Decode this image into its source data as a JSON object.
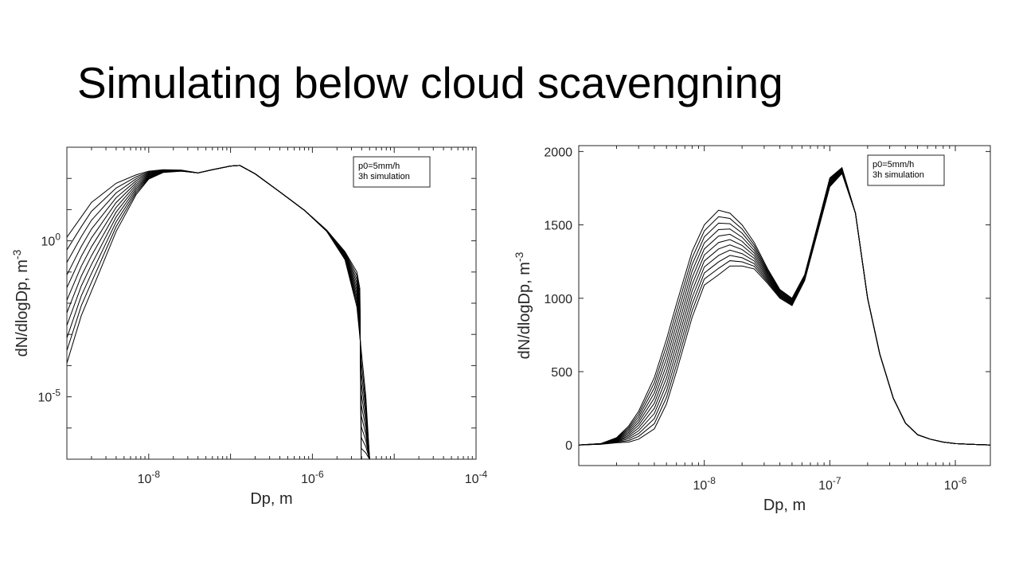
{
  "slide": {
    "title": "Simulating below cloud scavengning"
  },
  "chart_data": [
    {
      "type": "line",
      "xscale": "log",
      "yscale": "log",
      "xlabel": "Dp, m",
      "ylabel": "dN/dlogDp, m",
      "ylabel_sup": "-3",
      "xlim": [
        1e-09,
        0.0001
      ],
      "ylim": [
        1e-07,
        1000.0
      ],
      "xticks": [
        {
          "v": 1e-08,
          "base": "10",
          "exp": "-8"
        },
        {
          "v": 1e-06,
          "base": "10",
          "exp": "-6"
        },
        {
          "v": 0.0001,
          "base": "10",
          "exp": "-4"
        }
      ],
      "yticks": [
        {
          "v": 1.0,
          "base": "10",
          "exp": "0"
        },
        {
          "v": 1e-05,
          "base": "10",
          "exp": "-5"
        }
      ],
      "legend": {
        "lines": [
          "p0=5mm/h",
          "3h simulation"
        ],
        "placement": "top-right"
      },
      "grid": false,
      "n_series": 11,
      "upper_curve": {
        "x": [
          1e-09,
          2e-09,
          4e-09,
          7e-09,
          1e-08,
          1.5e-08,
          2.5e-08,
          4e-08,
          6e-08,
          1e-07,
          1.3e-07,
          2e-07,
          4e-07,
          8e-07,
          1.5e-06,
          2.5e-06,
          3.5e-06,
          3.8e-06,
          3.95e-06
        ],
        "y": [
          1.3,
          17,
          70,
          130,
          170,
          190,
          185,
          150,
          190,
          250,
          260,
          140,
          37,
          9.5,
          2.2,
          0.45,
          0.1,
          0.03,
          1e-07
        ]
      },
      "lower_curve": {
        "x": [
          1e-09,
          1.5e-09,
          2.5e-09,
          4e-09,
          7e-09,
          1e-08,
          1.5e-08,
          2.5e-08,
          4e-08,
          6e-08,
          1e-07,
          1.3e-07,
          2e-07,
          4e-07,
          8e-07,
          1.5e-06,
          2.5e-06,
          3.5e-06,
          4.5e-06,
          5e-06
        ],
        "y": [
          0.00012,
          0.004,
          0.1,
          2,
          30,
          95,
          155,
          170,
          150,
          190,
          250,
          260,
          140,
          37,
          9.5,
          2.0,
          0.25,
          0.0075,
          1e-05,
          1e-07
        ]
      }
    },
    {
      "type": "line",
      "xscale": "log",
      "yscale": "linear",
      "xlabel": "Dp, m",
      "ylabel": "dN/dlogDp, m",
      "ylabel_sup": "-3",
      "xlim": [
        1e-09,
        1.9e-06
      ],
      "ylim": [
        -140,
        2040
      ],
      "xticks": [
        {
          "v": 1e-08,
          "base": "10",
          "exp": "-8"
        },
        {
          "v": 1e-07,
          "base": "10",
          "exp": "-7"
        },
        {
          "v": 1e-06,
          "base": "10",
          "exp": "-6"
        }
      ],
      "yticks": [
        {
          "v": 0,
          "label": "0"
        },
        {
          "v": 500,
          "label": "500"
        },
        {
          "v": 1000,
          "label": "1000"
        },
        {
          "v": 1500,
          "label": "1500"
        },
        {
          "v": 2000,
          "label": "2000"
        }
      ],
      "legend": {
        "lines": [
          "p0=5mm/h",
          "3h simulation"
        ],
        "placement": "top-right"
      },
      "grid": false,
      "n_series": 11,
      "upper_curve": {
        "x": [
          1e-09,
          1.5e-09,
          2e-09,
          2.5e-09,
          3e-09,
          4e-09,
          5e-09,
          6e-09,
          8e-09,
          1e-08,
          1.3e-08,
          1.6e-08,
          2e-08,
          2.5e-08,
          3.2e-08,
          4e-08,
          5e-08,
          6.3e-08,
          8e-08,
          1e-07,
          1.25e-07,
          1.6e-07,
          2e-07,
          2.5e-07,
          3.2e-07,
          4e-07,
          5e-07,
          6.3e-07,
          8e-07,
          1e-06,
          1.3e-06,
          1.9e-06
        ],
        "y": [
          0,
          10,
          50,
          130,
          230,
          460,
          720,
          960,
          1320,
          1500,
          1600,
          1580,
          1500,
          1380,
          1200,
          1060,
          1000,
          1160,
          1500,
          1820,
          1890,
          1580,
          1000,
          620,
          320,
          150,
          70,
          40,
          20,
          10,
          5,
          0
        ]
      },
      "lower_curve": {
        "x": [
          1e-09,
          1.5e-09,
          2e-09,
          2.5e-09,
          3e-09,
          4e-09,
          5e-09,
          6e-09,
          8e-09,
          1e-08,
          1.3e-08,
          1.6e-08,
          2e-08,
          2.5e-08,
          3.2e-08,
          4e-08,
          5e-08,
          6.3e-08,
          8e-08,
          1e-07,
          1.25e-07,
          1.6e-07,
          2e-07,
          2.5e-07,
          3.2e-07,
          4e-07,
          5e-07,
          6.3e-07,
          8e-07,
          1e-06,
          1.3e-06,
          1.9e-06
        ],
        "y": [
          0,
          5,
          15,
          20,
          40,
          110,
          280,
          500,
          870,
          1090,
          1160,
          1220,
          1220,
          1200,
          1100,
          1000,
          950,
          1120,
          1450,
          1760,
          1850,
          1580,
          1000,
          620,
          320,
          150,
          70,
          40,
          20,
          10,
          5,
          0
        ]
      }
    }
  ]
}
